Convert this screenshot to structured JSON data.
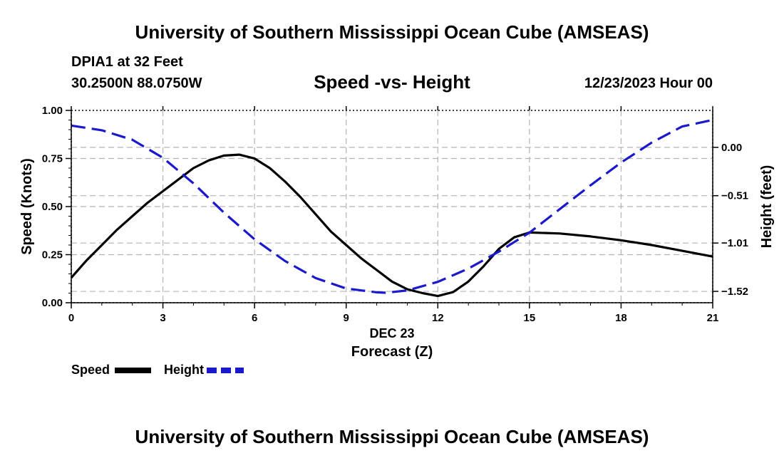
{
  "header": {
    "title": "University of Southern Mississippi Ocean Cube (AMSEAS)",
    "station": "DPIA1 at 32 Feet",
    "coordinates": "30.2500N  88.0750W",
    "chart_title": "Speed -vs- Height",
    "datetime": "12/23/2023 Hour 00"
  },
  "footer": {
    "title": "University of Southern Mississippi Ocean Cube (AMSEAS)"
  },
  "chart_data": {
    "type": "line",
    "title": "Speed -vs- Height",
    "xlabel": "Forecast (Z)",
    "xsublabel": "DEC 23",
    "ylabel": "Speed (Knots)",
    "y2label": "Height (feet)",
    "xlim": [
      0,
      21
    ],
    "ylim": [
      0,
      1
    ],
    "y2lim": [
      -1.64,
      0.39
    ],
    "grid": true,
    "xticks": [
      0,
      3,
      6,
      9,
      12,
      15,
      18,
      21
    ],
    "xtick_labels": [
      "0",
      "3",
      "6",
      "9",
      "12",
      "15",
      "18",
      "21"
    ],
    "yticks": [
      0,
      0.25,
      0.5,
      0.75,
      1.0
    ],
    "ytick_labels": [
      "0.00",
      "0.25",
      "0.50",
      "0.75",
      "1.00"
    ],
    "y2ticks": [
      0.0,
      -0.51,
      -1.01,
      -1.52
    ],
    "y2tick_labels": [
      "0.00",
      "−0.51",
      "−1.01",
      "−1.52"
    ],
    "series": [
      {
        "name": "Speed",
        "axis": "left",
        "color": "#000000",
        "dash": "solid",
        "x": [
          0,
          0.5,
          1,
          1.5,
          2,
          2.5,
          3,
          3.5,
          4,
          4.5,
          5,
          5.5,
          6,
          6.5,
          7,
          7.5,
          8,
          8.5,
          9,
          9.5,
          10,
          10.5,
          11,
          11.5,
          12,
          12.5,
          13,
          13.5,
          14,
          14.5,
          15,
          16,
          17,
          18,
          19,
          20,
          21
        ],
        "values": [
          0.13,
          0.22,
          0.3,
          0.38,
          0.45,
          0.52,
          0.58,
          0.64,
          0.7,
          0.74,
          0.765,
          0.77,
          0.75,
          0.7,
          0.63,
          0.55,
          0.46,
          0.37,
          0.3,
          0.23,
          0.17,
          0.11,
          0.07,
          0.05,
          0.035,
          0.055,
          0.11,
          0.19,
          0.28,
          0.34,
          0.365,
          0.36,
          0.345,
          0.325,
          0.3,
          0.27,
          0.24
        ]
      },
      {
        "name": "Height",
        "axis": "right",
        "color": "#1a1acc",
        "dash": "dashed",
        "x": [
          0,
          1,
          2,
          3,
          4,
          5,
          6,
          7,
          8,
          9,
          10,
          10.3,
          11,
          12,
          13,
          14,
          15,
          16,
          17,
          18,
          19,
          20,
          21
        ],
        "values": [
          0.23,
          0.18,
          0.08,
          -0.11,
          -0.38,
          -0.69,
          -0.97,
          -1.2,
          -1.38,
          -1.49,
          -1.53,
          -1.535,
          -1.51,
          -1.42,
          -1.28,
          -1.1,
          -0.9,
          -0.65,
          -0.4,
          -0.16,
          0.05,
          0.22,
          0.29
        ]
      }
    ],
    "legend": {
      "position": "bottom-left",
      "items": [
        "Speed",
        "Height"
      ]
    }
  }
}
